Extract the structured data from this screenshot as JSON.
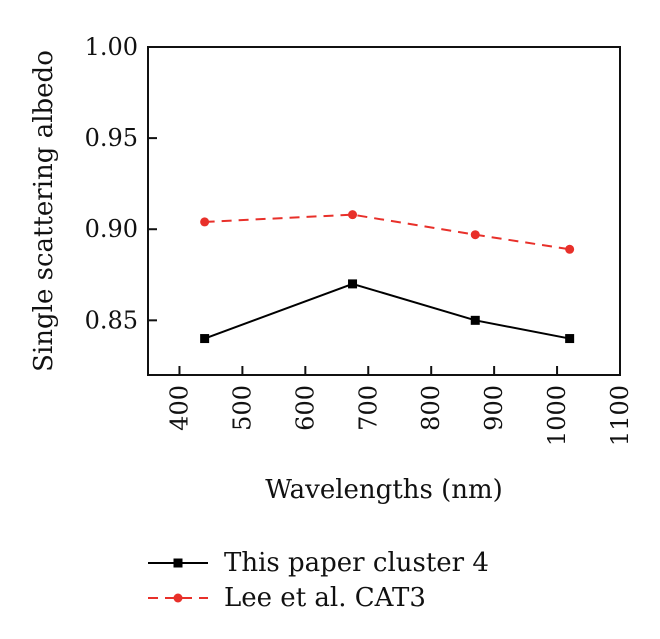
{
  "chart_data": {
    "type": "line",
    "xlabel": "Wavelengths (nm)",
    "ylabel": "Single scattering albedo",
    "xlim": [
      350,
      1100
    ],
    "ylim": [
      0.82,
      1.0
    ],
    "xticks": [
      "400",
      "500",
      "600",
      "700",
      "800",
      "900",
      "1000",
      "1100"
    ],
    "yticks": [
      "0.85",
      "0.90",
      "0.95",
      "1.00"
    ],
    "grid": false,
    "legend_position": "bottom",
    "series": [
      {
        "name": "This paper cluster 4",
        "color": "#000000",
        "line_style": "solid",
        "marker": "square",
        "x": [
          440,
          675,
          870,
          1020
        ],
        "y": [
          0.84,
          0.87,
          0.85,
          0.84
        ]
      },
      {
        "name": "Lee et al. CAT3",
        "color": "#e8302a",
        "line_style": "dashed",
        "marker": "circle",
        "x": [
          440,
          675,
          870,
          1020
        ],
        "y": [
          0.904,
          0.908,
          0.897,
          0.889
        ]
      }
    ]
  }
}
